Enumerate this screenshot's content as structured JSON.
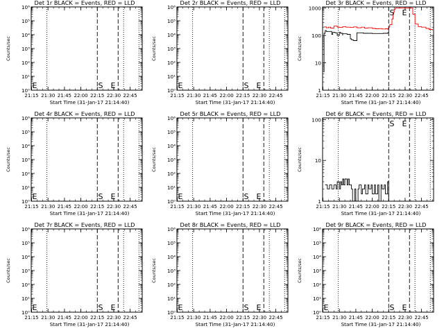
{
  "figure": {
    "colors": {
      "events": "#000000",
      "lld": "#ff0000",
      "axis": "#000000",
      "background": "#ffffff"
    }
  },
  "chart_data": [
    {
      "type": "line",
      "title": "Det 1r BLACK = Events, RED = LLD",
      "xlabel": "Start Time (31-Jan-17 21:14:40)",
      "ylabel": "Counts/sec",
      "yscale": "log",
      "ylim": [
        1,
        1000000
      ],
      "yticks": [
        "10⁰",
        "10¹",
        "10²",
        "10³",
        "10⁴",
        "10⁵",
        "10⁶"
      ],
      "xlim": [
        "21:14:40",
        "22:56:00"
      ],
      "xticks": [
        "21:15",
        "21:30",
        "21:45",
        "22:00",
        "22:15",
        "22:30",
        "22:45"
      ],
      "dotted_lines": [
        "21:29",
        "22:39",
        "22:53"
      ],
      "dashed_lines": [
        "22:15",
        "22:34"
      ],
      "markers": [
        {
          "label": "E",
          "time": "21:15"
        },
        {
          "label": "S",
          "time": "22:18"
        },
        {
          "label": "E",
          "time": "22:30"
        }
      ],
      "series": []
    },
    {
      "type": "line",
      "title": "Det 2r BLACK = Events, RED = LLD",
      "xlabel": "Start Time (31-Jan-17 21:14:40)",
      "ylabel": "Counts/sec",
      "yscale": "log",
      "ylim": [
        1,
        1000000
      ],
      "yticks": [
        "10⁰",
        "10¹",
        "10²",
        "10³",
        "10⁴",
        "10⁵",
        "10⁶"
      ],
      "xlim": [
        "21:14:40",
        "22:56:00"
      ],
      "xticks": [
        "21:15",
        "21:30",
        "21:45",
        "22:00",
        "22:15",
        "22:30",
        "22:45"
      ],
      "dotted_lines": [
        "21:29",
        "22:39",
        "22:53"
      ],
      "dashed_lines": [
        "22:15",
        "22:34"
      ],
      "markers": [
        {
          "label": "E",
          "time": "21:15"
        },
        {
          "label": "S",
          "time": "22:18"
        },
        {
          "label": "E",
          "time": "22:30"
        }
      ],
      "series": []
    },
    {
      "type": "line",
      "title": "Det 3r BLACK = Events, RED = LLD",
      "xlabel": "Start Time (31-Jan-17 21:14:40)",
      "ylabel": "Counts/sec",
      "yscale": "log",
      "ylim": [
        1,
        1100
      ],
      "yticks": [
        "1",
        "10",
        "100",
        "1000"
      ],
      "xlim": [
        "21:14:40",
        "22:56:00"
      ],
      "xticks": [
        "21:15",
        "21:30",
        "21:45",
        "22:00",
        "22:15",
        "22:30",
        "22:45"
      ],
      "dotted_lines": [
        "21:29",
        "22:39",
        "22:53"
      ],
      "dashed_lines": [
        "22:15",
        "22:34"
      ],
      "markers": [
        {
          "label": "S",
          "time": "22:18"
        },
        {
          "label": "E",
          "time": "22:30"
        }
      ],
      "series": [
        {
          "color": "#ff0000",
          "x": [
            "21:16",
            "21:18",
            "21:20",
            "21:22",
            "21:25",
            "21:28",
            "21:30",
            "21:33",
            "21:36",
            "21:40",
            "21:43",
            "21:46",
            "21:50",
            "21:53",
            "21:56",
            "22:00",
            "22:03",
            "22:06",
            "22:09",
            "22:12",
            "22:14",
            "22:15",
            "22:16",
            "22:18",
            "22:19",
            "22:20",
            "22:21",
            "22:22",
            "22:23",
            "22:24",
            "22:25",
            "22:26",
            "22:28",
            "22:30",
            "22:32",
            "22:33",
            "22:34",
            "22:35",
            "22:37",
            "22:39",
            "22:42",
            "22:45",
            "22:49",
            "22:52",
            "22:55"
          ],
          "y": [
            205,
            190,
            200,
            185,
            220,
            200,
            195,
            210,
            200,
            195,
            205,
            190,
            200,
            185,
            190,
            180,
            175,
            178,
            172,
            175,
            170,
            200,
            250,
            400,
            700,
            900,
            1000,
            1000,
            1000,
            1000,
            1000,
            1000,
            1000,
            1000,
            1000,
            1000,
            1000,
            1000,
            600,
            260,
            210,
            200,
            180,
            165,
            155
          ]
        },
        {
          "color": "#000000",
          "x": [
            "21:16",
            "21:16",
            "21:17",
            "21:18",
            "21:23",
            "21:23",
            "21:24",
            "21:26",
            "21:28",
            "21:30",
            "21:31",
            "21:33",
            "21:33",
            "21:37",
            "21:40",
            "21:40",
            "21:41",
            "21:42",
            "21:43",
            "21:45",
            "21:46",
            "21:46",
            "21:52",
            "21:56",
            "22:00",
            "22:05",
            "22:10",
            "22:14",
            "22:15"
          ],
          "y": [
            4.5,
            120,
            150,
            140,
            130,
            110,
            130,
            125,
            100,
            130,
            120,
            100,
            115,
            110,
            110,
            75,
            70,
            68,
            65,
            65,
            66,
            125,
            120,
            120,
            118,
            118,
            120,
            125,
            200
          ]
        }
      ]
    },
    {
      "type": "line",
      "title": "Det 4r BLACK = Events, RED = LLD",
      "xlabel": "Start Time (31-Jan-17 21:14:40)",
      "ylabel": "Counts/sec",
      "yscale": "log",
      "ylim": [
        1,
        1000000
      ],
      "yticks": [
        "10⁰",
        "10¹",
        "10²",
        "10³",
        "10⁴",
        "10⁵",
        "10⁶"
      ],
      "xlim": [
        "21:14:40",
        "22:56:00"
      ],
      "xticks": [
        "21:15",
        "21:30",
        "21:45",
        "22:00",
        "22:15",
        "22:30",
        "22:45"
      ],
      "dotted_lines": [
        "21:29",
        "22:39",
        "22:53"
      ],
      "dashed_lines": [
        "22:15",
        "22:34"
      ],
      "markers": [
        {
          "label": "E",
          "time": "21:15"
        },
        {
          "label": "S",
          "time": "22:18"
        },
        {
          "label": "E",
          "time": "22:30"
        }
      ],
      "series": []
    },
    {
      "type": "line",
      "title": "Det 5r BLACK = Events, RED = LLD",
      "xlabel": "Start Time (31-Jan-17 21:14:40)",
      "ylabel": "Counts/sec",
      "yscale": "log",
      "ylim": [
        1,
        1000000
      ],
      "yticks": [
        "10⁰",
        "10¹",
        "10²",
        "10³",
        "10⁴",
        "10⁵",
        "10⁶"
      ],
      "xlim": [
        "21:14:40",
        "22:56:00"
      ],
      "xticks": [
        "21:15",
        "21:30",
        "21:45",
        "22:00",
        "22:15",
        "22:30",
        "22:45"
      ],
      "dotted_lines": [
        "21:29",
        "22:39",
        "22:53"
      ],
      "dashed_lines": [
        "22:15",
        "22:34"
      ],
      "markers": [
        {
          "label": "E",
          "time": "21:15"
        },
        {
          "label": "S",
          "time": "22:18"
        },
        {
          "label": "E",
          "time": "22:30"
        }
      ],
      "series": []
    },
    {
      "type": "line",
      "title": "Det 6r BLACK = Events, RED = LLD",
      "xlabel": "Start Time (31-Jan-17 21:14:40)",
      "ylabel": "Counts/sec",
      "yscale": "log",
      "ylim": [
        1,
        110
      ],
      "yticks": [
        "1",
        "10",
        "100"
      ],
      "xlim": [
        "21:14:40",
        "22:56:00"
      ],
      "xticks": [
        "21:15",
        "21:30",
        "21:45",
        "22:00",
        "22:15",
        "22:30",
        "22:45"
      ],
      "dotted_lines": [
        "21:29",
        "22:39",
        "22:53"
      ],
      "dashed_lines": [
        "22:15",
        "22:34"
      ],
      "markers": [
        {
          "label": "S",
          "time": "22:18"
        },
        {
          "label": "E",
          "time": "22:30"
        }
      ],
      "series": [
        {
          "color": "#000000",
          "x": [
            "21:17",
            "21:19",
            "21:21",
            "21:23",
            "21:25",
            "21:27",
            "21:28",
            "21:30",
            "21:31",
            "21:32",
            "21:33",
            "21:34",
            "21:35",
            "21:37",
            "21:38",
            "21:39",
            "21:41",
            "21:42",
            "21:44",
            "21:45",
            "21:47",
            "21:48",
            "21:50",
            "21:51",
            "21:53",
            "21:54",
            "21:56",
            "21:57",
            "21:59",
            "22:00",
            "22:02",
            "22:03",
            "22:05",
            "22:06",
            "22:08",
            "22:09",
            "22:11",
            "22:12",
            "22:14",
            "22:15"
          ],
          "y": [
            2.5,
            2,
            2.5,
            2,
            2.5,
            2,
            3,
            2,
            3,
            2.5,
            3.5,
            2.5,
            3.5,
            2.5,
            3.5,
            2.5,
            2,
            1,
            2,
            1,
            2,
            2.5,
            1.5,
            2,
            2.5,
            1.5,
            2.5,
            2,
            2.5,
            1.5,
            2.5,
            1.5,
            2.5,
            1,
            2.5,
            2,
            2.5,
            1.5,
            3,
            1
          ]
        }
      ]
    },
    {
      "type": "line",
      "title": "Det 7r BLACK = Events, RED = LLD",
      "xlabel": "Start Time (31-Jan-17 21:14:40)",
      "ylabel": "Counts/sec",
      "yscale": "log",
      "ylim": [
        1,
        1000000
      ],
      "yticks": [
        "10⁰",
        "10¹",
        "10²",
        "10³",
        "10⁴",
        "10⁵",
        "10⁶"
      ],
      "xlim": [
        "21:14:40",
        "22:56:00"
      ],
      "xticks": [
        "21:15",
        "21:30",
        "21:45",
        "22:00",
        "22:15",
        "22:30",
        "22:45"
      ],
      "dotted_lines": [
        "21:29",
        "22:39",
        "22:53"
      ],
      "dashed_lines": [
        "22:15",
        "22:34"
      ],
      "markers": [
        {
          "label": "E",
          "time": "21:15"
        },
        {
          "label": "S",
          "time": "22:18"
        },
        {
          "label": "E",
          "time": "22:30"
        }
      ],
      "series": []
    },
    {
      "type": "line",
      "title": "Det 8r BLACK = Events, RED = LLD",
      "xlabel": "Start Time (31-Jan-17 21:14:40)",
      "ylabel": "Counts/sec",
      "yscale": "log",
      "ylim": [
        1,
        1000000
      ],
      "yticks": [
        "10⁰",
        "10¹",
        "10²",
        "10³",
        "10⁴",
        "10⁵",
        "10⁶"
      ],
      "xlim": [
        "21:14:40",
        "22:56:00"
      ],
      "xticks": [
        "21:15",
        "21:30",
        "21:45",
        "22:00",
        "22:15",
        "22:30",
        "22:45"
      ],
      "dotted_lines": [
        "21:29",
        "22:39",
        "22:53"
      ],
      "dashed_lines": [
        "22:15",
        "22:34"
      ],
      "markers": [
        {
          "label": "E",
          "time": "21:15"
        },
        {
          "label": "S",
          "time": "22:18"
        },
        {
          "label": "E",
          "time": "22:30"
        }
      ],
      "series": []
    },
    {
      "type": "line",
      "title": "Det 9r BLACK = Events, RED = LLD",
      "xlabel": "Start Time (31-Jan-17 21:14:40)",
      "ylabel": "Counts/sec",
      "yscale": "log",
      "ylim": [
        1,
        1000000
      ],
      "yticks": [
        "10⁰",
        "10¹",
        "10²",
        "10³",
        "10⁴",
        "10⁵",
        "10⁶"
      ],
      "xlim": [
        "21:14:40",
        "22:56:00"
      ],
      "xticks": [
        "21:15",
        "21:30",
        "21:45",
        "22:00",
        "22:15",
        "22:30",
        "22:45"
      ],
      "dotted_lines": [
        "21:29",
        "22:39",
        "22:53"
      ],
      "dashed_lines": [
        "22:15",
        "22:34"
      ],
      "markers": [
        {
          "label": "E",
          "time": "21:15"
        },
        {
          "label": "S",
          "time": "22:18"
        },
        {
          "label": "E",
          "time": "22:30"
        }
      ],
      "series": []
    }
  ]
}
